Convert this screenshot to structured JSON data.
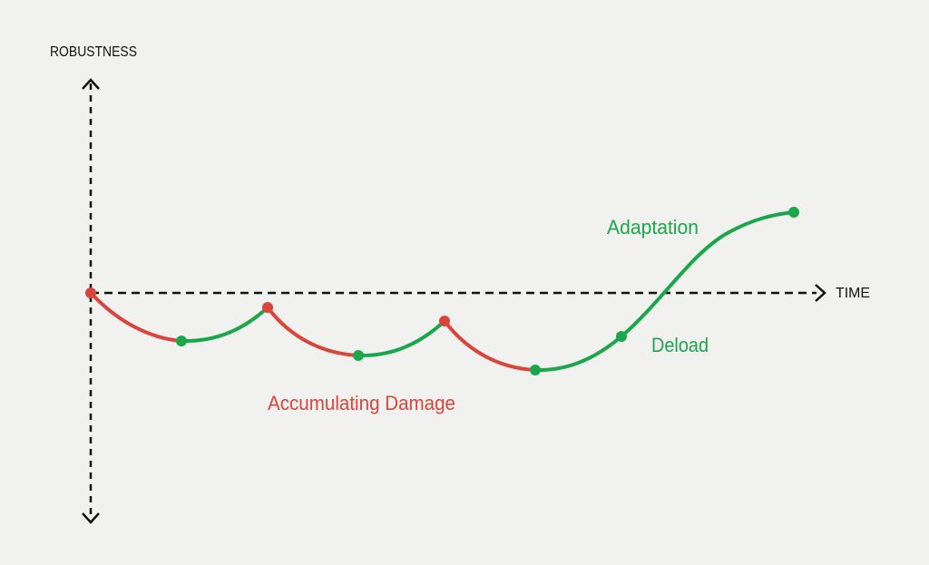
{
  "axes": {
    "y_label": "ROBUSTNESS",
    "x_label": "TIME"
  },
  "annotations": {
    "damage": "Accumulating Damage",
    "adaptation": "Adaptation",
    "deload": "Deload"
  }
}
